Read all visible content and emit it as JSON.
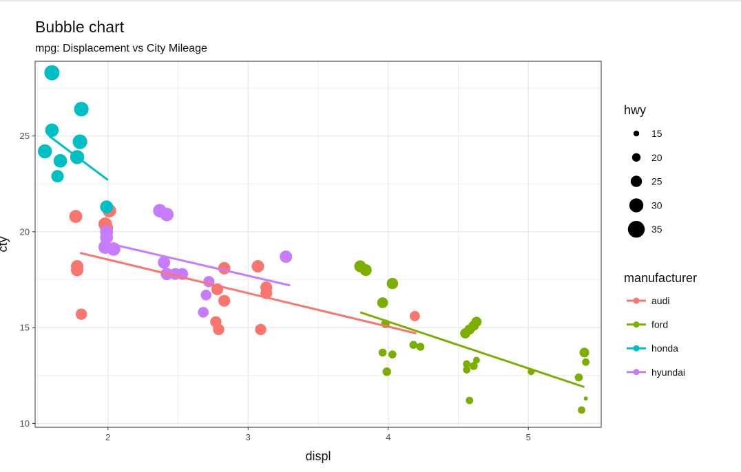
{
  "chart_data": {
    "type": "scatter",
    "title": "Bubble chart",
    "subtitle": "mpg: Displacement vs City Mileage",
    "xlabel": "displ",
    "ylabel": "cty",
    "xlim": [
      1.48,
      5.52
    ],
    "ylim": [
      9.8,
      28.9
    ],
    "x_ticks": [
      2,
      3,
      4,
      5
    ],
    "y_ticks": [
      10,
      15,
      20,
      25
    ],
    "grid": true,
    "legend_position": "right",
    "size_legend": {
      "title": "hwy",
      "values": [
        15,
        20,
        25,
        30,
        35
      ]
    },
    "color_legend": {
      "title": "manufacturer",
      "items": [
        "audi",
        "ford",
        "honda",
        "hyundai"
      ]
    },
    "colors": {
      "audi": "#F8766D",
      "ford": "#7CAE00",
      "honda": "#00BFC4",
      "hyundai": "#C77CFF"
    },
    "series": [
      {
        "name": "audi",
        "trend": [
          [
            1.8,
            18.9
          ],
          [
            4.2,
            14.7
          ]
        ],
        "points": [
          [
            1.77,
            20.8,
            28
          ],
          [
            1.78,
            18.2,
            27
          ],
          [
            1.78,
            18.0,
            27
          ],
          [
            1.81,
            15.7,
            25
          ],
          [
            1.98,
            20.4,
            29
          ],
          [
            1.99,
            20.2,
            28
          ],
          [
            2.01,
            21.1,
            29
          ],
          [
            2.77,
            15.3,
            25
          ],
          [
            2.79,
            14.9,
            25
          ],
          [
            2.78,
            17.0,
            26
          ],
          [
            2.83,
            18.1,
            27
          ],
          [
            2.83,
            16.4,
            26
          ],
          [
            3.07,
            18.2,
            27
          ],
          [
            3.09,
            14.9,
            25
          ],
          [
            3.13,
            17.1,
            26
          ],
          [
            3.13,
            16.8,
            26
          ],
          [
            4.19,
            15.6,
            23
          ]
        ]
      },
      {
        "name": "ford",
        "trend": [
          [
            3.8,
            15.8
          ],
          [
            5.4,
            11.9
          ]
        ],
        "points": [
          [
            3.8,
            18.2,
            26
          ],
          [
            3.84,
            18.0,
            26
          ],
          [
            3.96,
            16.3,
            24
          ],
          [
            4.03,
            17.3,
            25
          ],
          [
            3.98,
            15.2,
            20
          ],
          [
            3.96,
            13.7,
            19
          ],
          [
            4.03,
            13.6,
            19
          ],
          [
            3.99,
            12.7,
            20
          ],
          [
            4.18,
            14.1,
            19
          ],
          [
            4.23,
            14.0,
            19
          ],
          [
            4.55,
            14.7,
            23
          ],
          [
            4.58,
            14.9,
            23
          ],
          [
            4.61,
            15.1,
            23
          ],
          [
            4.63,
            15.3,
            23
          ],
          [
            4.56,
            13.1,
            18
          ],
          [
            4.56,
            12.8,
            18
          ],
          [
            4.61,
            13.0,
            19
          ],
          [
            4.63,
            13.3,
            17
          ],
          [
            4.58,
            11.2,
            18
          ],
          [
            5.02,
            12.7,
            17
          ],
          [
            5.36,
            12.4,
            19
          ],
          [
            5.4,
            13.7,
            22
          ],
          [
            5.41,
            13.2,
            18
          ],
          [
            5.41,
            11.3,
            12
          ],
          [
            5.38,
            10.7,
            18
          ]
        ]
      },
      {
        "name": "honda",
        "trend": [
          [
            1.58,
            25.0
          ],
          [
            2.0,
            22.7
          ]
        ],
        "points": [
          [
            1.6,
            28.3,
            32
          ],
          [
            1.81,
            26.4,
            31
          ],
          [
            1.6,
            25.3,
            29
          ],
          [
            1.8,
            24.7,
            31
          ],
          [
            1.55,
            24.2,
            30
          ],
          [
            1.66,
            23.7,
            29
          ],
          [
            1.78,
            23.9,
            30
          ],
          [
            1.64,
            22.9,
            27
          ],
          [
            1.99,
            21.3,
            28
          ]
        ]
      },
      {
        "name": "hyundai",
        "trend": [
          [
            2.0,
            19.4
          ],
          [
            3.3,
            17.2
          ]
        ],
        "points": [
          [
            2.37,
            21.1,
            29
          ],
          [
            2.42,
            20.9,
            29
          ],
          [
            1.99,
            20.0,
            28
          ],
          [
            1.99,
            19.7,
            28
          ],
          [
            2.04,
            19.1,
            29
          ],
          [
            1.98,
            19.2,
            29
          ],
          [
            3.27,
            18.7,
            27
          ],
          [
            2.4,
            18.4,
            27
          ],
          [
            2.42,
            17.8,
            27
          ],
          [
            2.48,
            17.8,
            26
          ],
          [
            2.53,
            17.8,
            26
          ],
          [
            2.72,
            17.4,
            25
          ],
          [
            2.7,
            16.7,
            24
          ],
          [
            2.68,
            15.8,
            24
          ]
        ]
      }
    ]
  }
}
